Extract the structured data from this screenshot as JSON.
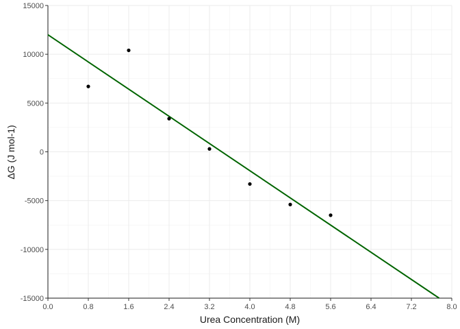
{
  "chart_data": {
    "type": "scatter",
    "title": "",
    "xlabel": "Urea Concentration (M)",
    "ylabel": "ΔG (J mol-1)",
    "xlim": [
      0,
      8
    ],
    "ylim": [
      -15000,
      15000
    ],
    "x_ticks": [
      0.0,
      0.8,
      1.6,
      2.4,
      3.2,
      4.0,
      4.8,
      5.6,
      6.4,
      7.2,
      8.0
    ],
    "x_tick_labels": [
      "0.0",
      "0.8",
      "1.6",
      "2.4",
      "3.2",
      "4.0",
      "4.8",
      "5.6",
      "6.4",
      "7.2",
      "8.0"
    ],
    "y_ticks": [
      -15000,
      -10000,
      -5000,
      0,
      5000,
      10000,
      15000
    ],
    "y_tick_labels": [
      "-15000",
      "-10000",
      "-5000",
      "0",
      "5000",
      "10000",
      "15000"
    ],
    "grid": true,
    "points": {
      "x": [
        0.8,
        1.6,
        2.4,
        3.2,
        4.0,
        4.8,
        5.6
      ],
      "y": [
        6700,
        10400,
        3400,
        300,
        -3300,
        -5400,
        -6500
      ],
      "color": "#000000"
    },
    "fit_line": {
      "x": [
        0.0,
        7.75
      ],
      "y": [
        12000,
        -15000
      ],
      "color": "#006400"
    }
  }
}
